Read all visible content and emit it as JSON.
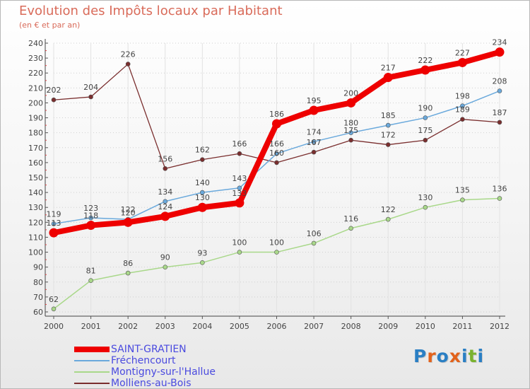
{
  "title": "Evolution des Impôts locaux par Habitant",
  "subtitle": "(en € et par an)",
  "logo": {
    "text": "Proxiti",
    "colors": [
      "#2a7fc4",
      "#e2621b",
      "#2a7fc4",
      "#e2621b",
      "#2a7fc4",
      "#7ab22f",
      "#2a7fc4"
    ]
  },
  "chart_data": {
    "type": "line",
    "title": "Evolution des Impôts locaux par Habitant",
    "subtitle": "(en € et par an)",
    "xlabel": "",
    "ylabel": "",
    "x": [
      2000,
      2001,
      2002,
      2003,
      2004,
      2005,
      2006,
      2007,
      2008,
      2009,
      2010,
      2011,
      2012
    ],
    "ylim": [
      60,
      240
    ],
    "yticks": [
      60,
      70,
      80,
      90,
      100,
      110,
      120,
      130,
      140,
      150,
      160,
      170,
      180,
      190,
      200,
      210,
      220,
      230,
      240
    ],
    "grid": true,
    "legend_position": "bottom-left",
    "series": [
      {
        "name": "SAINT-GRATIEN",
        "color": "#ee0000",
        "values": [
          113,
          118,
          120,
          124,
          130,
          133,
          186,
          195,
          200,
          217,
          222,
          227,
          234
        ]
      },
      {
        "name": "Fréchencourt",
        "color": "#6aa9dc",
        "values": [
          119,
          123,
          122,
          134,
          140,
          143,
          166,
          174,
          180,
          185,
          190,
          198,
          208
        ]
      },
      {
        "name": "Montigny-sur-l'Hallue",
        "color": "#a9d88a",
        "values": [
          62,
          81,
          86,
          90,
          93,
          100,
          100,
          106,
          116,
          122,
          130,
          135,
          136
        ]
      },
      {
        "name": "Molliens-au-Bois",
        "color": "#7a2e2e",
        "values": [
          202,
          204,
          226,
          156,
          162,
          166,
          160,
          167,
          175,
          172,
          175,
          189,
          187
        ]
      }
    ]
  }
}
